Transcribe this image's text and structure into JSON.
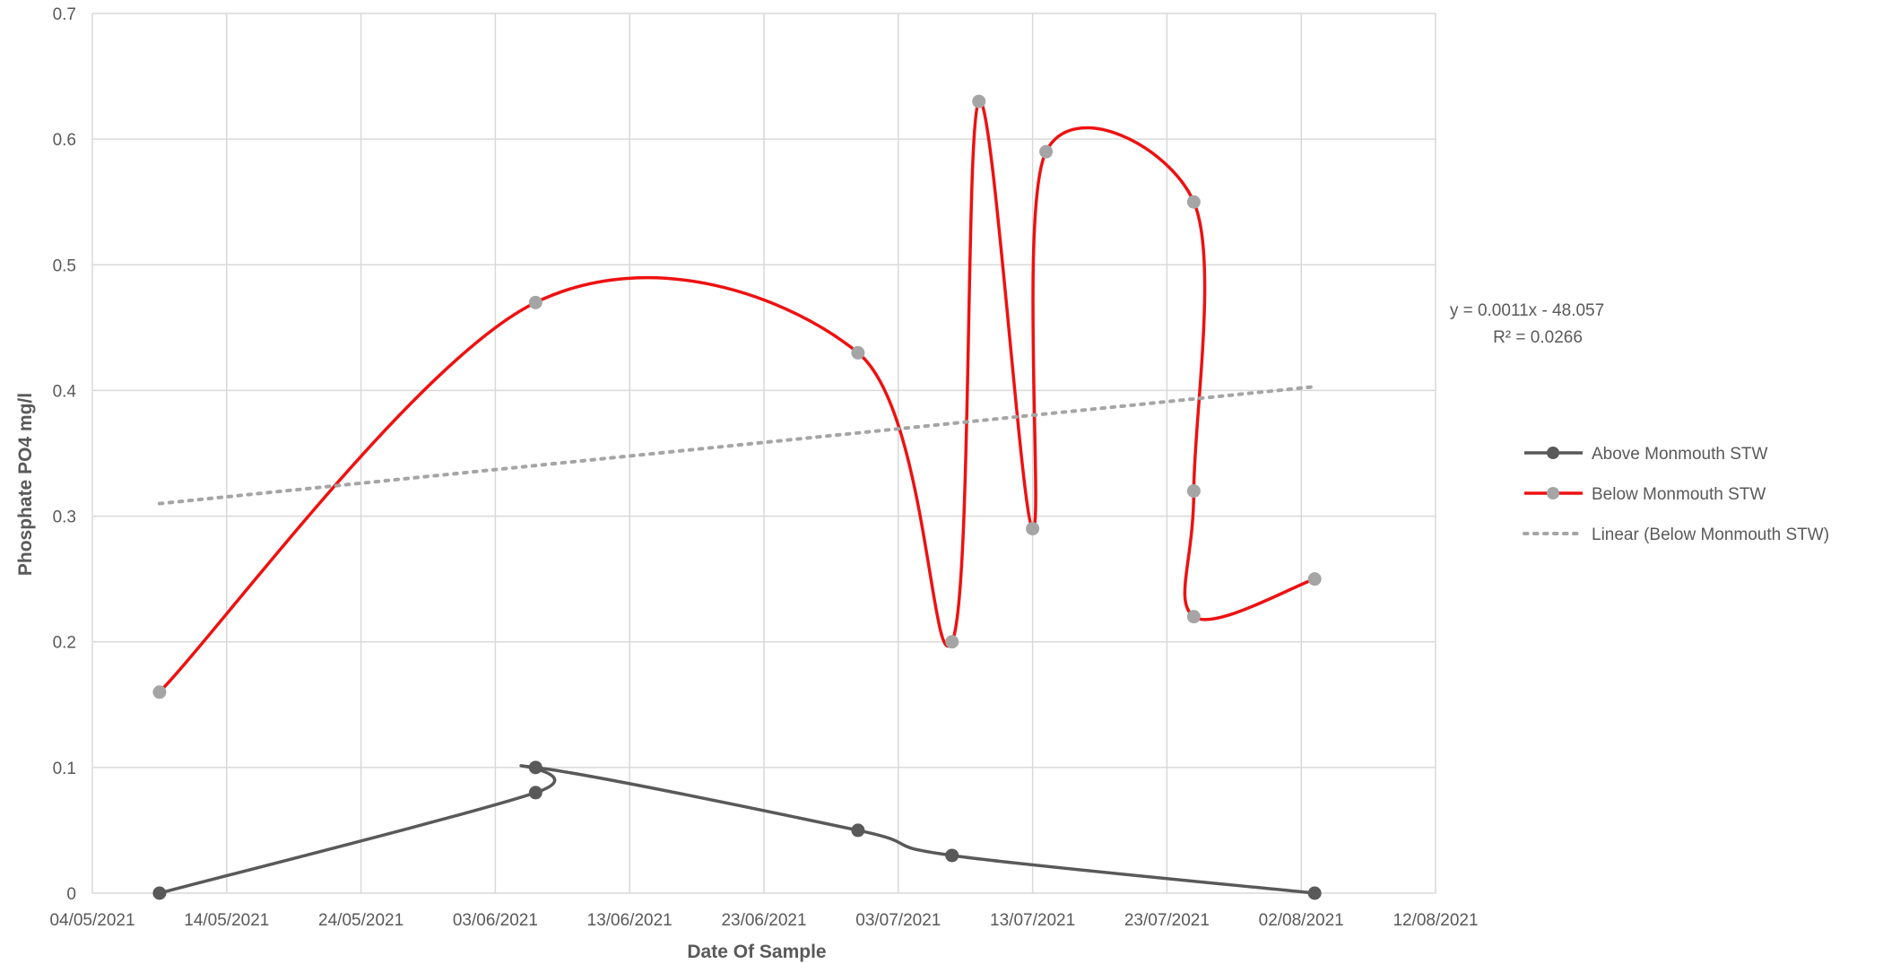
{
  "chart_data": {
    "type": "scatter",
    "title": "",
    "xlabel": "Date Of Sample",
    "ylabel": "Phosphate PO4 mg/l",
    "x_axis_type": "date",
    "xlim": [
      "04/05/2021",
      "12/08/2021"
    ],
    "x_tick_labels": [
      "04/05/2021",
      "14/05/2021",
      "24/05/2021",
      "03/06/2021",
      "13/06/2021",
      "23/06/2021",
      "03/07/2021",
      "13/07/2021",
      "23/07/2021",
      "02/08/2021",
      "12/08/2021"
    ],
    "ylim": [
      0,
      0.7
    ],
    "y_ticks": [
      0,
      0.1,
      0.2,
      0.3,
      0.4,
      0.5,
      0.6,
      0.7
    ],
    "y_tick_labels": [
      "0",
      "0.1",
      "0.2",
      "0.3",
      "0.4",
      "0.5",
      "0.6",
      "0.7"
    ],
    "grid": true,
    "smoothed_lines": true,
    "legend_position": "right",
    "series": [
      {
        "name": "Above Monmouth STW",
        "color": "#595959",
        "marker_color": "#595959",
        "points": [
          {
            "x": "09/05/2021",
            "y": 0
          },
          {
            "x": "06/06/2021",
            "y": 0.08
          },
          {
            "x": "06/06/2021",
            "y": 0.1
          },
          {
            "x": "30/06/2021",
            "y": 0.05
          },
          {
            "x": "07/07/2021",
            "y": 0.03
          },
          {
            "x": "03/08/2021",
            "y": 0
          }
        ]
      },
      {
        "name": "Below Monmouth STW",
        "color": "#ee1111",
        "marker_color": "#a5a5a5",
        "points": [
          {
            "x": "09/05/2021",
            "y": 0.16
          },
          {
            "x": "06/06/2021",
            "y": 0.47
          },
          {
            "x": "30/06/2021",
            "y": 0.43
          },
          {
            "x": "07/07/2021",
            "y": 0.2
          },
          {
            "x": "09/07/2021",
            "y": 0.63
          },
          {
            "x": "13/07/2021",
            "y": 0.29
          },
          {
            "x": "14/07/2021",
            "y": 0.59
          },
          {
            "x": "25/07/2021",
            "y": 0.55
          },
          {
            "x": "25/07/2021",
            "y": 0.32
          },
          {
            "x": "25/07/2021",
            "y": 0.22
          },
          {
            "x": "03/08/2021",
            "y": 0.25
          }
        ]
      }
    ],
    "trendline": {
      "name": "Linear (Below Monmouth STW)",
      "color": "#a5a5a5",
      "equation": "y = 0.0011x - 48.057",
      "r_squared": "R² = 0.0266",
      "from": {
        "x": "09/05/2021",
        "y": 0.31
      },
      "to": {
        "x": "03/08/2021",
        "y": 0.403
      }
    }
  }
}
